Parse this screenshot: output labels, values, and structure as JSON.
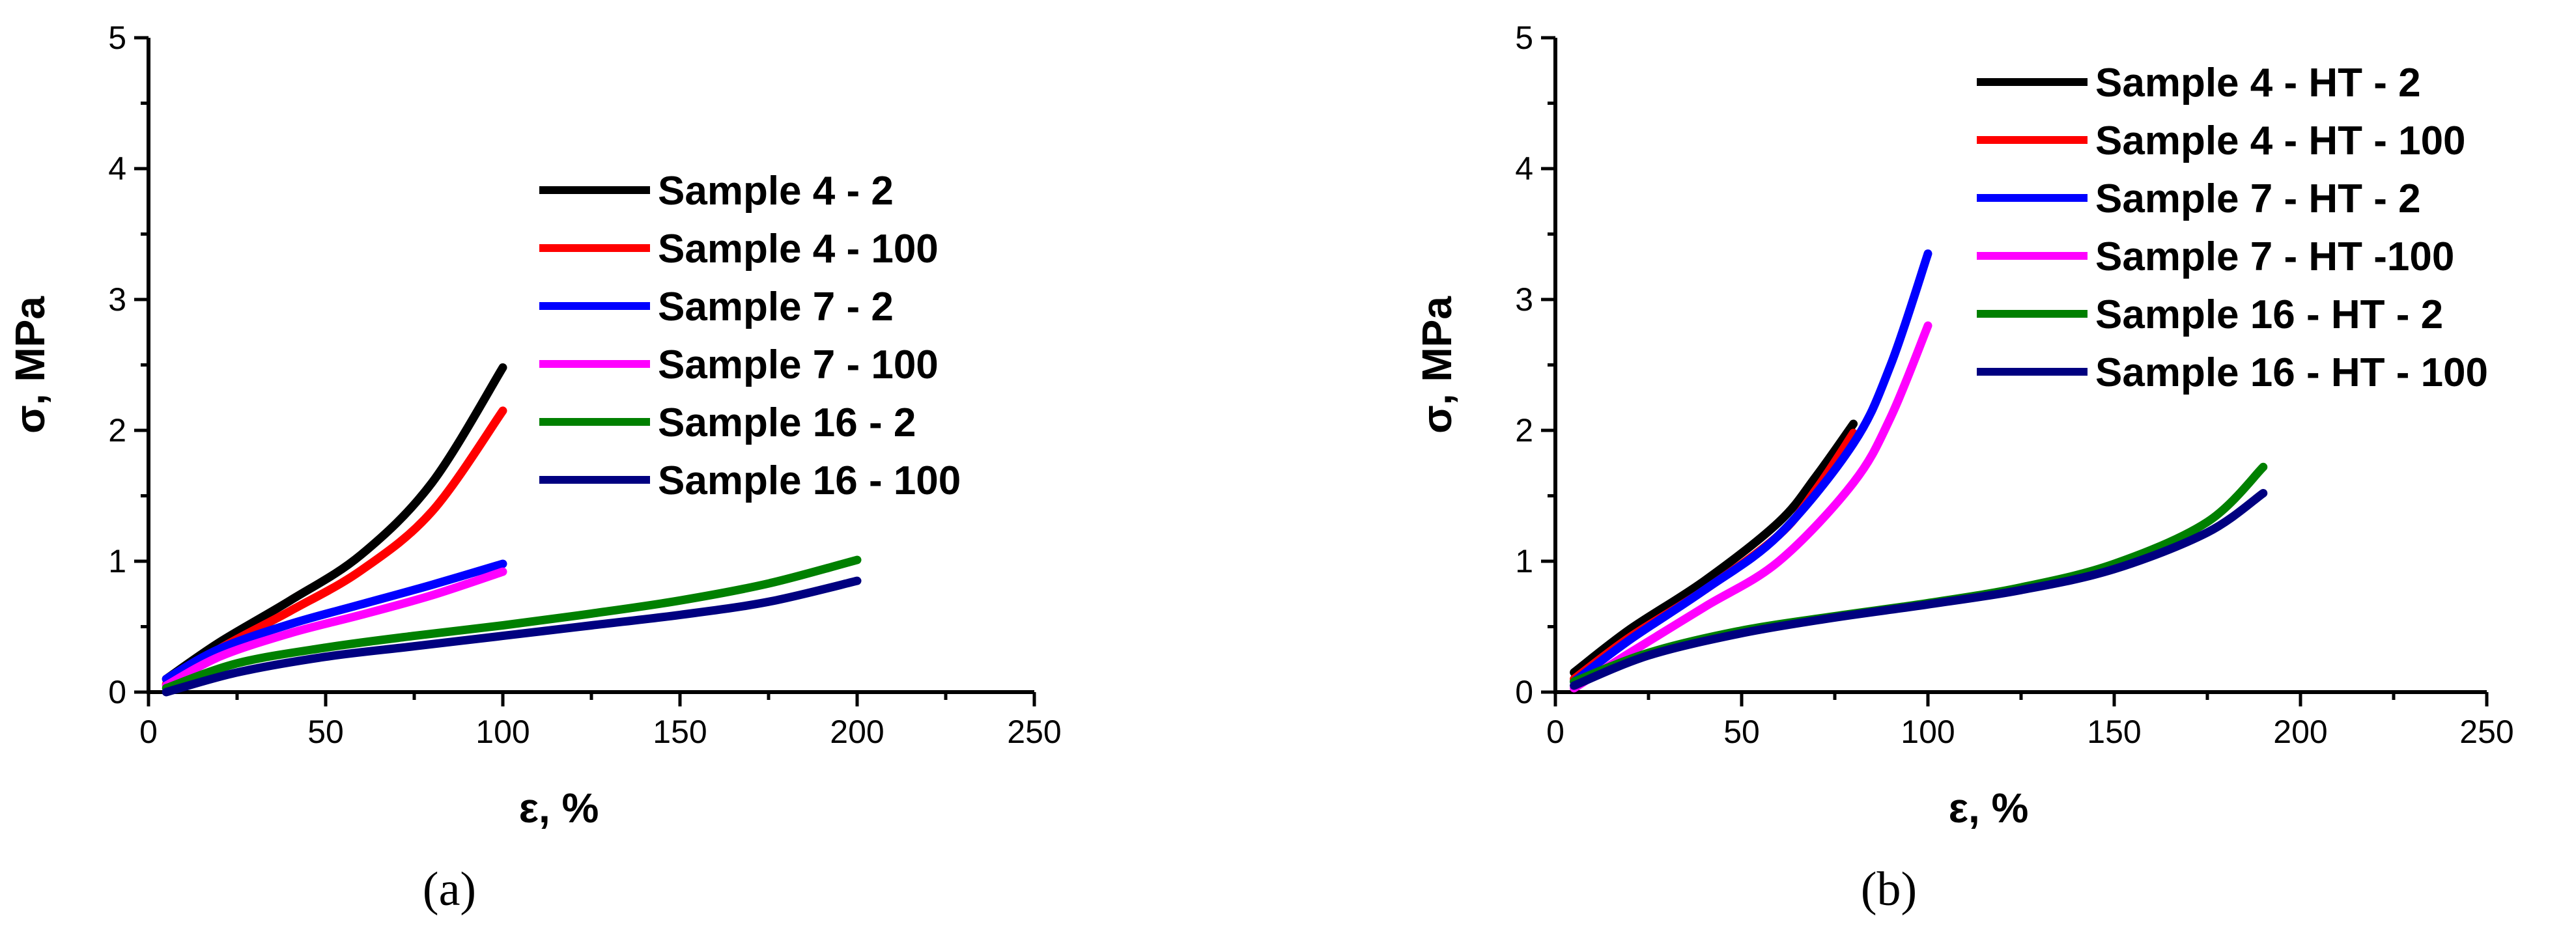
{
  "chart_data": [
    {
      "type": "line",
      "panel": "a",
      "caption": "(a)",
      "xlabel": "ε, %",
      "ylabel": "σ, MPa",
      "xlim": [
        0,
        250
      ],
      "ylim": [
        0,
        5
      ],
      "xticks": [
        "0",
        "50",
        "100",
        "150",
        "200",
        "250"
      ],
      "yticks": [
        "0",
        "1",
        "2",
        "3",
        "4",
        "5"
      ],
      "legend_position": "center",
      "series": [
        {
          "name": "Sample 4 - 2",
          "color": "#000000",
          "x": [
            5,
            20,
            40,
            60,
            80,
            100
          ],
          "y": [
            0.1,
            0.38,
            0.7,
            1.05,
            1.6,
            2.48
          ]
        },
        {
          "name": "Sample 4 - 100",
          "color": "#ff0000",
          "x": [
            5,
            20,
            40,
            60,
            80,
            100
          ],
          "y": [
            0.06,
            0.33,
            0.62,
            0.93,
            1.38,
            2.15
          ]
        },
        {
          "name": "Sample 7 - 2",
          "color": "#0000ff",
          "x": [
            5,
            20,
            40,
            60,
            80,
            100
          ],
          "y": [
            0.1,
            0.33,
            0.52,
            0.67,
            0.82,
            0.98
          ]
        },
        {
          "name": "Sample 7 - 100",
          "color": "#ff00ff",
          "x": [
            5,
            20,
            40,
            60,
            80,
            100
          ],
          "y": [
            0.05,
            0.27,
            0.45,
            0.59,
            0.74,
            0.92
          ]
        },
        {
          "name": "Sample 16 - 2",
          "color": "#008000",
          "x": [
            5,
            25,
            50,
            75,
            100,
            125,
            150,
            175,
            200
          ],
          "y": [
            0.03,
            0.22,
            0.34,
            0.43,
            0.51,
            0.6,
            0.7,
            0.83,
            1.01
          ]
        },
        {
          "name": "Sample 16 - 100",
          "color": "#000080",
          "x": [
            5,
            25,
            50,
            75,
            100,
            125,
            150,
            175,
            200
          ],
          "y": [
            0.0,
            0.15,
            0.27,
            0.35,
            0.43,
            0.51,
            0.59,
            0.69,
            0.85
          ]
        }
      ]
    },
    {
      "type": "line",
      "panel": "b",
      "caption": "(b)",
      "xlabel": "ε, %",
      "ylabel": "σ, MPa",
      "xlim": [
        0,
        250
      ],
      "ylim": [
        0,
        5
      ],
      "xticks": [
        "0",
        "50",
        "100",
        "150",
        "200",
        "250"
      ],
      "yticks": [
        "0",
        "1",
        "2",
        "3",
        "4",
        "5"
      ],
      "legend_position": "top-right",
      "series": [
        {
          "name": "Sample 4 - HT - 2",
          "color": "#000000",
          "x": [
            5,
            20,
            40,
            60,
            70,
            80
          ],
          "y": [
            0.15,
            0.48,
            0.85,
            1.3,
            1.65,
            2.05
          ]
        },
        {
          "name": "Sample 4 - HT - 100",
          "color": "#ff0000",
          "x": [
            5,
            20,
            40,
            60,
            70,
            80
          ],
          "y": [
            0.1,
            0.42,
            0.78,
            1.2,
            1.55,
            1.98
          ]
        },
        {
          "name": "Sample 7 - HT - 2",
          "color": "#0000ff",
          "x": [
            5,
            20,
            40,
            60,
            80,
            90,
            100
          ],
          "y": [
            0.08,
            0.4,
            0.78,
            1.2,
            1.9,
            2.5,
            3.35
          ]
        },
        {
          "name": "Sample 7 - HT -100",
          "color": "#ff00ff",
          "x": [
            5,
            20,
            40,
            60,
            80,
            90,
            100
          ],
          "y": [
            0.03,
            0.3,
            0.65,
            1.0,
            1.6,
            2.1,
            2.8
          ]
        },
        {
          "name": "Sample 16 - HT - 2",
          "color": "#008000",
          "x": [
            5,
            25,
            50,
            75,
            100,
            125,
            150,
            175,
            190
          ],
          "y": [
            0.08,
            0.3,
            0.47,
            0.58,
            0.68,
            0.8,
            0.98,
            1.3,
            1.72
          ]
        },
        {
          "name": "Sample 16 - HT - 100",
          "color": "#000080",
          "x": [
            5,
            25,
            50,
            75,
            100,
            125,
            150,
            175,
            190
          ],
          "y": [
            0.05,
            0.28,
            0.45,
            0.57,
            0.67,
            0.78,
            0.94,
            1.22,
            1.52
          ]
        }
      ]
    }
  ]
}
